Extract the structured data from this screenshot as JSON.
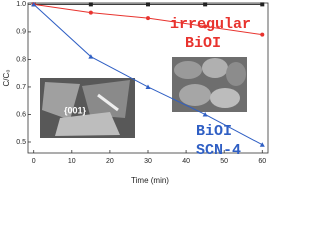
{
  "chart_data": {
    "type": "line",
    "x_label": "Time (min)",
    "y_label": "C/C₀",
    "x": [
      0,
      15,
      30,
      45,
      60
    ],
    "series": [
      {
        "color": "#222222",
        "marker": "square",
        "values": [
          1.0,
          1.0,
          1.0,
          1.0,
          1.0
        ]
      },
      {
        "color": "#e8332e",
        "marker": "circle",
        "values": [
          1.0,
          0.97,
          0.95,
          0.92,
          0.89
        ]
      },
      {
        "color": "#2f5fc4",
        "marker": "triangle",
        "values": [
          1.0,
          0.81,
          0.7,
          0.6,
          0.49
        ]
      }
    ],
    "xlim": [
      -1.5,
      61.5
    ],
    "xticks": [
      0,
      10,
      20,
      30,
      40,
      50,
      60
    ],
    "ylim": [
      0.46,
      1.005
    ],
    "yticks": [
      {
        "value": 0.5,
        "label": "0.5"
      },
      {
        "value": 0.6,
        "label": "0.6"
      },
      {
        "value": 0.7,
        "label": "0.7"
      },
      {
        "value": 0.8,
        "label": "0.8"
      },
      {
        "value": 0.9,
        "label": "0.9"
      },
      {
        "value": 1.0,
        "label": "1.0"
      }
    ],
    "annotations": [
      "irregular",
      "BiOI",
      "BiOI",
      "SCN-4",
      "{001}"
    ]
  }
}
